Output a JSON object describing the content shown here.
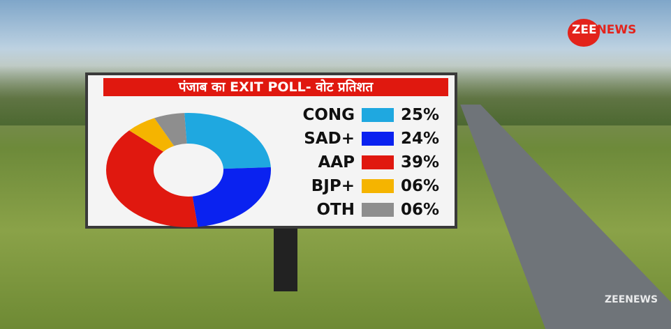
{
  "channel": {
    "logo_text_zee": "ZEE",
    "logo_text_news": "NEWS",
    "watermark": "ZEENEWS"
  },
  "chart_data": {
    "type": "pie",
    "style": "donut",
    "title": "पंजाब का EXIT POLL- वोट प्रतिशत",
    "categories": [
      "CONG",
      "SAD+",
      "AAP",
      "BJP+",
      "OTH"
    ],
    "values": [
      25,
      24,
      39,
      6,
      6
    ],
    "value_labels": [
      "25%",
      "24%",
      "39%",
      "06%",
      "06%"
    ],
    "colors": [
      "#1fa8e0",
      "#0a22f0",
      "#e0180f",
      "#f5b400",
      "#8e8e8e"
    ],
    "legend": "right"
  }
}
